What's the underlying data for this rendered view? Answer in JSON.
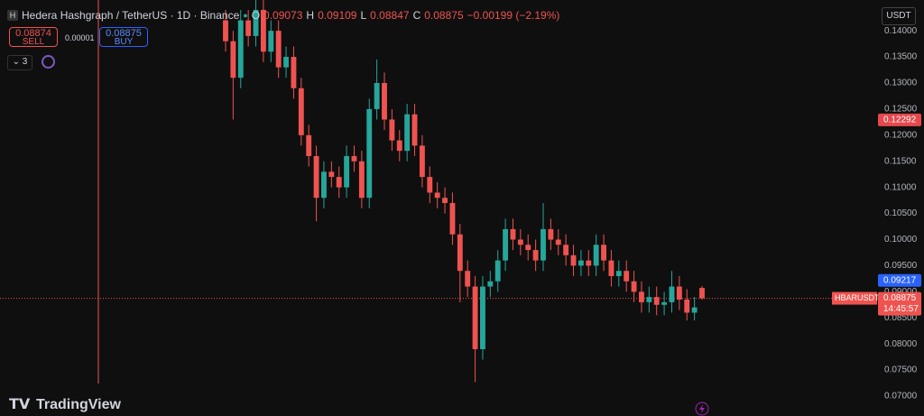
{
  "header": {
    "icon": "H",
    "title": "Hedera Hashgraph / TetherUS · 1D · Binance",
    "o": "O",
    "h": "H",
    "l": "L",
    "c": "C",
    "change": "−0.00199 (−2.19%)"
  },
  "trade": {
    "sell_price": "0.08874",
    "sell": "SELL",
    "spread": "0.00001",
    "buy_price": "0.08875",
    "buy": "BUY",
    "indicators": "3"
  },
  "currency": "USDT",
  "symbol_label": "HBARUSDT",
  "countdown": "14:45:57",
  "logo": "TradingView",
  "chart_data": {
    "type": "candlestick",
    "open": [
      0.142,
      0.138,
      0.131,
      0.142,
      0.139,
      0.144,
      0.136,
      0.14,
      0.133,
      0.135,
      0.129,
      0.12,
      0.116,
      0.108,
      0.113,
      0.112,
      0.11,
      0.116,
      0.115,
      0.108,
      0.125,
      0.13,
      0.123,
      0.119,
      0.117,
      0.124,
      0.118,
      0.112,
      0.109,
      0.108,
      0.107,
      0.101,
      0.094,
      0.091,
      0.079,
      0.091,
      0.092,
      0.096,
      0.102,
      0.1,
      0.099,
      0.098,
      0.096,
      0.102,
      0.1,
      0.099,
      0.097,
      0.095,
      0.096,
      0.095,
      0.099,
      0.096,
      0.093,
      0.094,
      0.092,
      0.09,
      0.088,
      0.089,
      0.0875,
      0.088,
      0.091,
      0.0885,
      0.086,
      0.09073
    ],
    "high": [
      0.144,
      0.14,
      0.144,
      0.144,
      0.146,
      0.146,
      0.142,
      0.142,
      0.137,
      0.137,
      0.131,
      0.122,
      0.118,
      0.115,
      0.115,
      0.114,
      0.118,
      0.118,
      0.117,
      0.127,
      0.1345,
      0.132,
      0.125,
      0.121,
      0.126,
      0.126,
      0.12,
      0.114,
      0.111,
      0.11,
      0.109,
      0.103,
      0.096,
      0.093,
      0.093,
      0.094,
      0.098,
      0.104,
      0.104,
      0.102,
      0.101,
      0.1,
      0.107,
      0.104,
      0.102,
      0.101,
      0.099,
      0.098,
      0.098,
      0.101,
      0.101,
      0.098,
      0.096,
      0.096,
      0.094,
      0.092,
      0.091,
      0.091,
      0.09,
      0.094,
      0.093,
      0.0905,
      0.089,
      0.09109
    ],
    "low": [
      0.136,
      0.123,
      0.129,
      0.137,
      0.137,
      0.134,
      0.134,
      0.131,
      0.131,
      0.127,
      0.118,
      0.114,
      0.1035,
      0.106,
      0.11,
      0.108,
      0.108,
      0.113,
      0.106,
      0.106,
      0.123,
      0.121,
      0.117,
      0.115,
      0.115,
      0.116,
      0.11,
      0.107,
      0.106,
      0.105,
      0.099,
      0.088,
      0.089,
      0.0727,
      0.077,
      0.089,
      0.09,
      0.094,
      0.098,
      0.097,
      0.096,
      0.094,
      0.094,
      0.098,
      0.097,
      0.095,
      0.093,
      0.093,
      0.093,
      0.093,
      0.094,
      0.091,
      0.091,
      0.09,
      0.088,
      0.086,
      0.086,
      0.0855,
      0.0855,
      0.086,
      0.0865,
      0.0845,
      0.0845,
      0.08847
    ],
    "close": [
      0.138,
      0.131,
      0.142,
      0.139,
      0.144,
      0.136,
      0.14,
      0.133,
      0.135,
      0.129,
      0.12,
      0.116,
      0.108,
      0.113,
      0.112,
      0.11,
      0.116,
      0.115,
      0.108,
      0.125,
      0.13,
      0.123,
      0.119,
      0.117,
      0.124,
      0.118,
      0.112,
      0.109,
      0.108,
      0.107,
      0.101,
      0.094,
      0.091,
      0.079,
      0.091,
      0.092,
      0.096,
      0.102,
      0.1,
      0.099,
      0.098,
      0.096,
      0.102,
      0.1,
      0.099,
      0.097,
      0.095,
      0.096,
      0.095,
      0.099,
      0.096,
      0.093,
      0.094,
      0.092,
      0.09,
      0.088,
      0.089,
      0.0875,
      0.088,
      0.091,
      0.0885,
      0.086,
      0.087,
      0.08875
    ],
    "colors": {
      "up": "#26a69a",
      "down": "#ef5350"
    },
    "ylim": [
      0.0662,
      0.1459
    ],
    "yticks": [
      {
        "value": 0.07,
        "label": "0.07000"
      },
      {
        "value": 0.075,
        "label": "0.07500"
      },
      {
        "value": 0.08,
        "label": "0.08000"
      },
      {
        "value": 0.085,
        "label": "0.08500"
      },
      {
        "value": 0.09,
        "label": "0.09000"
      },
      {
        "value": 0.095,
        "label": "0.09500"
      },
      {
        "value": 0.1,
        "label": "0.10000"
      },
      {
        "value": 0.105,
        "label": "0.10500"
      },
      {
        "value": 0.11,
        "label": "0.11000"
      },
      {
        "value": 0.115,
        "label": "0.11500"
      },
      {
        "value": 0.12,
        "label": "0.12000"
      },
      {
        "value": 0.125,
        "label": "0.12500"
      },
      {
        "value": 0.13,
        "label": "0.13000"
      },
      {
        "value": 0.135,
        "label": "0.13500"
      },
      {
        "value": 0.14,
        "label": "0.14000"
      }
    ],
    "markers": [
      {
        "value": 0.12292,
        "color": "#e5484d"
      },
      {
        "value": 0.09217,
        "color": "#2962ff"
      }
    ]
  }
}
